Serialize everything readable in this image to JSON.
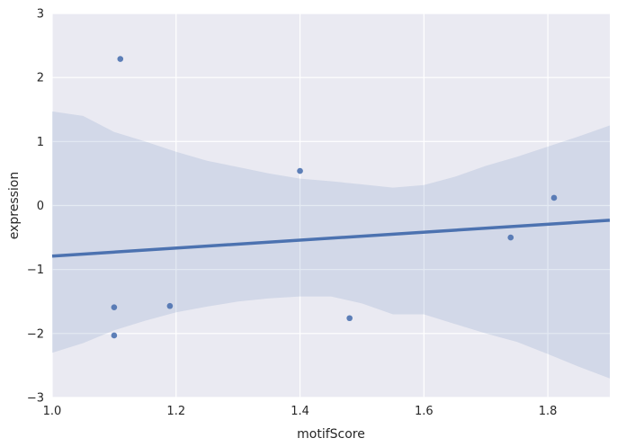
{
  "chart_data": {
    "type": "scatter",
    "xlabel": "motifScore",
    "ylabel": "expression",
    "xlim": [
      1.0,
      1.9
    ],
    "ylim": [
      -3,
      3
    ],
    "x_ticks": [
      1.0,
      1.2,
      1.4,
      1.6,
      1.8
    ],
    "x_tick_labels": [
      "1.0",
      "1.2",
      "1.4",
      "1.6",
      "1.8"
    ],
    "y_ticks": [
      3,
      2,
      1,
      0,
      -1,
      -2,
      -3
    ],
    "y_tick_labels": [
      "3",
      "2",
      "1",
      "0",
      "−1",
      "−2",
      "−3"
    ],
    "grid": true,
    "points": [
      {
        "x": 1.11,
        "y": 2.29
      },
      {
        "x": 1.1,
        "y": -1.59
      },
      {
        "x": 1.1,
        "y": -2.03
      },
      {
        "x": 1.19,
        "y": -1.57
      },
      {
        "x": 1.4,
        "y": 0.54
      },
      {
        "x": 1.48,
        "y": -1.76
      },
      {
        "x": 1.74,
        "y": -0.5
      },
      {
        "x": 1.81,
        "y": 0.12
      }
    ],
    "regression_line": [
      {
        "x": 1.0,
        "y": -0.79
      },
      {
        "x": 1.9,
        "y": -0.23
      }
    ],
    "confidence_band": {
      "upper": [
        {
          "x": 1.0,
          "y": 1.47
        },
        {
          "x": 1.05,
          "y": 1.4
        },
        {
          "x": 1.1,
          "y": 1.15
        },
        {
          "x": 1.15,
          "y": 1.0
        },
        {
          "x": 1.2,
          "y": 0.84
        },
        {
          "x": 1.25,
          "y": 0.7
        },
        {
          "x": 1.3,
          "y": 0.6
        },
        {
          "x": 1.35,
          "y": 0.5
        },
        {
          "x": 1.4,
          "y": 0.42
        },
        {
          "x": 1.45,
          "y": 0.38
        },
        {
          "x": 1.5,
          "y": 0.33
        },
        {
          "x": 1.55,
          "y": 0.28
        },
        {
          "x": 1.6,
          "y": 0.32
        },
        {
          "x": 1.65,
          "y": 0.45
        },
        {
          "x": 1.7,
          "y": 0.62
        },
        {
          "x": 1.75,
          "y": 0.76
        },
        {
          "x": 1.8,
          "y": 0.92
        },
        {
          "x": 1.85,
          "y": 1.08
        },
        {
          "x": 1.9,
          "y": 1.25
        }
      ],
      "lower": [
        {
          "x": 1.0,
          "y": -2.3
        },
        {
          "x": 1.05,
          "y": -2.15
        },
        {
          "x": 1.1,
          "y": -1.95
        },
        {
          "x": 1.15,
          "y": -1.8
        },
        {
          "x": 1.2,
          "y": -1.67
        },
        {
          "x": 1.25,
          "y": -1.58
        },
        {
          "x": 1.3,
          "y": -1.5
        },
        {
          "x": 1.35,
          "y": -1.45
        },
        {
          "x": 1.4,
          "y": -1.42
        },
        {
          "x": 1.45,
          "y": -1.42
        },
        {
          "x": 1.5,
          "y": -1.53
        },
        {
          "x": 1.55,
          "y": -1.7
        },
        {
          "x": 1.6,
          "y": -1.7
        },
        {
          "x": 1.65,
          "y": -1.85
        },
        {
          "x": 1.7,
          "y": -2.0
        },
        {
          "x": 1.75,
          "y": -2.13
        },
        {
          "x": 1.8,
          "y": -2.32
        },
        {
          "x": 1.85,
          "y": -2.52
        },
        {
          "x": 1.9,
          "y": -2.7
        }
      ]
    },
    "colors": {
      "plot_background": "#EAEAF2",
      "grid": "#FFFFFF",
      "points": "#4C72B0",
      "line": "#4C72B0",
      "band": "#4C72B0"
    }
  }
}
